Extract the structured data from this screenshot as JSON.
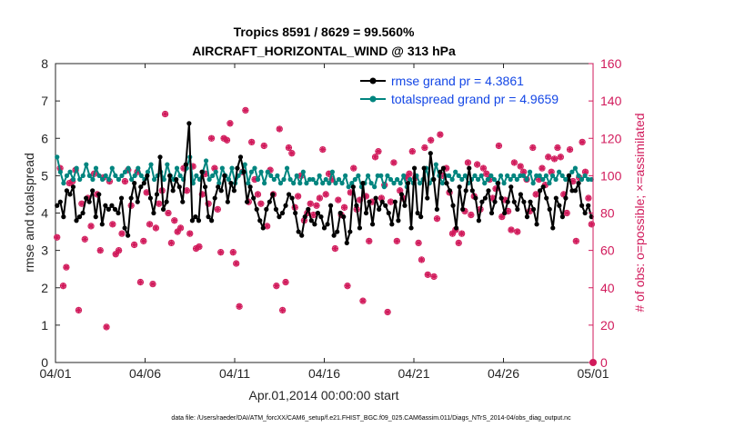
{
  "chart_data": {
    "type": "line",
    "title": "Tropics 8591 / 8629 = 99.560%",
    "subtitle": "AIRCRAFT_HORIZONTAL_WIND @ 313 hPa",
    "xlabel": "Apr.01,2014 00:00:00 start",
    "ylabel": "rmse and totalspread",
    "y2label": "# of obs: o=possible; ×=assimilated",
    "footnote": "data file: /Users/raeder/DAI/ATM_forcXX/CAM6_setup/f.e21.FHIST_BGC.f09_025.CAM6assim.011/Diags_NTrS_2014-04/obs_diag_output.nc",
    "xlim": [
      0,
      30
    ],
    "ylim": [
      0,
      8
    ],
    "y2lim": [
      0,
      160
    ],
    "xticks": [
      0,
      5,
      10,
      15,
      20,
      25,
      30
    ],
    "xtick_labels": [
      "04/01",
      "04/06",
      "04/11",
      "04/16",
      "04/21",
      "04/26",
      "05/01"
    ],
    "yticks": [
      "0",
      "1",
      "2",
      "3",
      "4",
      "5",
      "6",
      "7",
      "8"
    ],
    "y2ticks": [
      "0",
      "20",
      "40",
      "60",
      "80",
      "100",
      "120",
      "140",
      "160"
    ],
    "grid": false,
    "legend_position": "top-right",
    "series": [
      {
        "name": "rmse grand pr = 4.3861",
        "color": "#000000",
        "marker": "circle",
        "axis": "left",
        "values": [
          4.2,
          4.3,
          3.9,
          4.6,
          4.5,
          4.7,
          3.8,
          3.9,
          4.0,
          4.4,
          4.3,
          4.6,
          3.9,
          4.5,
          3.7,
          4.2,
          4.1,
          4.2,
          4.1,
          4.0,
          4.4,
          3.6,
          3.4,
          4.4,
          4.8,
          4.3,
          4.7,
          4.8,
          5.0,
          4.4,
          4.0,
          4.5,
          5.5,
          4.1,
          4.3,
          5.0,
          4.6,
          4.9,
          4.7,
          4.3,
          5.3,
          6.4,
          3.8,
          3.9,
          3.8,
          5.1,
          4.7,
          3.9,
          3.8,
          4.4,
          4.7,
          4.6,
          5.0,
          4.3,
          4.8,
          4.6,
          5.2,
          5.5,
          5.1,
          4.3,
          4.7,
          4.4,
          4.1,
          3.8,
          3.6,
          4.1,
          4.3,
          4.5,
          4.1,
          3.9,
          4.0,
          4.2,
          4.5,
          4.4,
          4.0,
          3.5,
          3.4,
          3.9,
          4.1,
          3.8,
          3.7,
          4.0,
          3.9,
          3.6,
          3.7,
          4.2,
          3.4,
          3.5,
          4.0,
          3.9,
          3.2,
          3.5,
          4.7,
          4.2,
          3.6,
          4.8,
          4.0,
          4.3,
          3.7,
          4.4,
          4.1,
          4.3,
          4.2,
          4.0,
          3.7,
          4.3,
          3.8,
          4.5,
          4.2,
          4.8,
          3.6,
          5.2,
          4.0,
          3.9,
          5.2,
          4.4,
          5.6,
          4.9,
          4.1,
          5.1,
          5.2,
          4.8,
          4.6,
          4.2,
          3.6,
          4.7,
          4.1,
          4.6,
          5.2,
          4.6,
          4.4,
          3.8,
          4.3,
          4.4,
          4.6,
          4.0,
          4.3,
          4.8,
          4.4,
          4.0,
          4.3,
          4.7,
          4.3,
          4.1,
          4.5,
          4.3,
          3.9,
          4.3,
          4.1,
          3.7,
          4.6,
          4.7,
          4.4,
          4.1,
          3.6,
          4.4,
          4.2,
          3.9,
          4.4,
          5.0,
          4.6,
          4.6,
          4.8,
          4.2,
          4.0,
          4.2,
          3.9
        ]
      },
      {
        "name": "totalspread grand pr = 4.9659",
        "color": "#00857f",
        "marker": "circle",
        "axis": "left",
        "values": [
          5.5,
          5.1,
          4.8,
          5.0,
          5.1,
          4.9,
          5.2,
          4.9,
          5.0,
          5.3,
          5.0,
          4.9,
          5.2,
          5.0,
          4.9,
          5.0,
          4.9,
          5.2,
          5.0,
          4.9,
          5.0,
          5.1,
          5.2,
          4.9,
          5.0,
          5.2,
          5.0,
          4.9,
          5.1,
          5.3,
          4.9,
          5.0,
          5.1,
          4.9,
          5.3,
          5.0,
          4.9,
          5.2,
          5.0,
          4.9,
          5.2,
          5.5,
          4.8,
          5.0,
          4.9,
          5.1,
          5.4,
          4.9,
          5.0,
          5.1,
          4.8,
          5.2,
          5.0,
          4.9,
          5.2,
          4.8,
          5.0,
          5.1,
          5.3,
          4.8,
          5.1,
          5.2,
          4.9,
          5.1,
          4.8,
          5.1,
          5.0,
          4.9,
          5.0,
          4.8,
          4.9,
          5.2,
          4.9,
          4.8,
          5.0,
          4.8,
          5.1,
          4.8,
          4.9,
          4.9,
          4.8,
          5.0,
          4.8,
          4.9,
          4.8,
          5.1,
          4.8,
          4.9,
          4.8,
          5.0,
          4.7,
          4.8,
          4.9,
          5.0,
          4.7,
          4.8,
          5.0,
          4.8,
          4.7,
          5.0,
          5.0,
          4.7,
          5.0,
          4.9,
          4.8,
          4.9,
          4.8,
          5.0,
          4.7,
          4.9,
          4.8,
          5.0,
          4.8,
          4.9,
          5.2,
          4.8,
          4.9,
          5.3,
          5.0,
          4.8,
          5.0,
          5.0,
          4.9,
          5.1,
          5.0,
          4.9,
          5.0,
          4.8,
          4.9,
          5.0,
          4.9,
          5.0,
          4.8,
          4.9,
          5.0,
          4.9,
          4.8,
          5.0,
          4.8,
          5.0,
          4.9,
          5.0,
          4.9,
          5.0,
          5.0,
          4.9,
          5.1,
          4.8,
          5.0,
          5.0,
          4.9,
          5.0,
          4.8,
          5.0,
          4.9,
          5.1,
          5.0,
          4.9,
          5.0,
          5.1,
          5.2,
          5.0,
          4.9,
          5.0,
          4.9,
          4.9
        ]
      },
      {
        "name": "# of obs (possible / assimilated)",
        "color": "#d11a5b",
        "marker": "star",
        "axis": "right",
        "values": [
          67,
          104,
          41,
          51,
          96,
          97,
          103,
          28,
          85,
          66,
          88,
          73,
          101,
          90,
          60,
          99,
          19,
          97,
          74,
          58,
          60,
          69,
          97,
          103,
          84,
          63,
          102,
          43,
          65,
          91,
          74,
          42,
          72,
          85,
          92,
          133,
          80,
          64,
          76,
          70,
          72,
          104,
          92,
          69,
          105,
          61,
          62,
          90,
          101,
          85,
          120,
          104,
          82,
          59,
          120,
          119,
          128,
          59,
          53,
          30,
          102,
          135,
          86,
          118,
          98,
          90,
          85,
          116,
          73,
          103,
          90,
          41,
          125,
          28,
          43,
          115,
          112,
          83,
          89,
          100,
          76,
          80,
          85,
          79,
          84,
          88,
          114,
          90,
          101,
          98,
          61,
          87,
          79,
          83,
          41,
          91,
          104,
          82,
          87,
          33,
          89,
          65,
          86,
          110,
          113,
          88,
          95,
          27,
          86,
          107,
          65,
          92,
          88,
          99,
          101,
          113,
          99,
          64,
          55,
          115,
          47,
          119,
          46,
          77,
          122,
          100,
          104,
          91,
          69,
          71,
          64,
          69,
          81,
          107,
          79,
          89,
          106,
          82,
          104,
          101,
          98,
          88,
          93,
          116,
          78,
          87,
          81,
          71,
          107,
          70,
          105,
          102,
          98,
          81,
          115,
          90,
          98,
          104,
          95,
          110,
          102,
          109,
          115,
          110,
          90,
          80,
          114,
          97,
          65,
          99,
          118,
          102,
          88,
          74
        ]
      }
    ]
  }
}
